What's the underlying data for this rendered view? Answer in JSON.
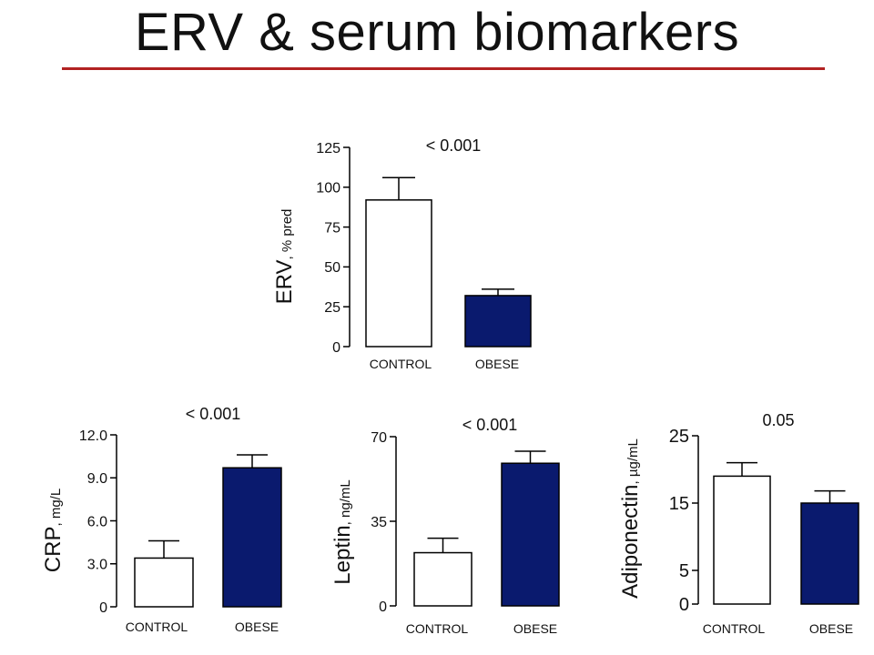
{
  "slide": {
    "title": "ERV & serum biomarkers",
    "rule_color": "#b22222"
  },
  "colors": {
    "control_fill": "#ffffff",
    "obese_fill": "#0a1a6e",
    "stroke": "#000000"
  },
  "chart_data": [
    {
      "id": "erv",
      "type": "bar",
      "categories": [
        "CONTROL",
        "OBESE"
      ],
      "values": [
        92,
        32
      ],
      "errors": [
        14,
        4
      ],
      "ylabel": "ERV",
      "ylabel_unit": ", % pred",
      "ylim": [
        0,
        125
      ],
      "yticks": [
        "0",
        "25",
        "50",
        "75",
        "100",
        "125"
      ],
      "annotation": "< 0.001"
    },
    {
      "id": "crp",
      "type": "bar",
      "categories": [
        "CONTROL",
        "OBESE"
      ],
      "values": [
        3.4,
        9.7
      ],
      "errors": [
        1.2,
        0.9
      ],
      "ylabel": "CRP",
      "ylabel_unit": ", mg/L",
      "ylim": [
        0,
        12
      ],
      "yticks": [
        "0",
        "3.0",
        "6.0",
        "9.0",
        "12.0"
      ],
      "annotation": "< 0.001"
    },
    {
      "id": "leptin",
      "type": "bar",
      "categories": [
        "CONTROL",
        "OBESE"
      ],
      "values": [
        22,
        59
      ],
      "errors": [
        6,
        5
      ],
      "ylabel": "Leptin",
      "ylabel_unit": ", ng/mL",
      "ylim": [
        0,
        70
      ],
      "yticks": [
        "0",
        "35",
        "70"
      ],
      "annotation": "< 0.001"
    },
    {
      "id": "adiponectin",
      "type": "bar",
      "categories": [
        "CONTROL",
        "OBESE"
      ],
      "values": [
        19,
        15
      ],
      "errors": [
        2,
        1.8
      ],
      "ylabel": "Adiponectin",
      "ylabel_unit": ", µg/mL",
      "ylim": [
        0,
        25
      ],
      "yticks": [
        "0",
        "5",
        "15",
        "25"
      ],
      "annotation": "0.05"
    }
  ]
}
